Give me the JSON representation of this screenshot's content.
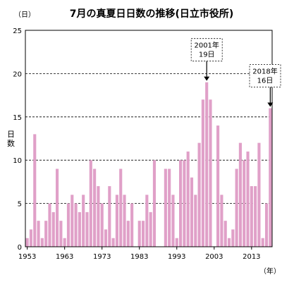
{
  "chart_data": {
    "type": "bar",
    "title": "7月の真夏日日数の推移(日立市役所)",
    "y_unit": "（日）",
    "ylabel": "日数",
    "x_unit": "（年）",
    "ylim": [
      0,
      25
    ],
    "y_ticks": [
      "0",
      "5",
      "10",
      "15",
      "20",
      "25"
    ],
    "x_ticks": [
      "1953",
      "1963",
      "1973",
      "1983",
      "1993",
      "2003",
      "2013"
    ],
    "grid": "horizontal-dashed",
    "bar_color": "#e0a0c8",
    "categories": [
      1953,
      1954,
      1955,
      1956,
      1957,
      1958,
      1959,
      1960,
      1961,
      1962,
      1963,
      1964,
      1965,
      1966,
      1967,
      1968,
      1969,
      1970,
      1971,
      1972,
      1973,
      1974,
      1975,
      1976,
      1977,
      1978,
      1979,
      1980,
      1981,
      1982,
      1983,
      1984,
      1985,
      1986,
      1987,
      1988,
      1989,
      1990,
      1991,
      1992,
      1993,
      1994,
      1995,
      1996,
      1997,
      1998,
      1999,
      2000,
      2001,
      2002,
      2003,
      2004,
      2005,
      2006,
      2007,
      2008,
      2009,
      2010,
      2011,
      2012,
      2013,
      2014,
      2015,
      2016,
      2017,
      2018
    ],
    "values": [
      1,
      2,
      13,
      3,
      1,
      3,
      5,
      4,
      9,
      3,
      1,
      5,
      6,
      5,
      4,
      6,
      4,
      10,
      9,
      7,
      5,
      2,
      7,
      1,
      6,
      9,
      6,
      3,
      5,
      0,
      3,
      3,
      6,
      4,
      10,
      0,
      0,
      9,
      9,
      6,
      1,
      10,
      10,
      11,
      8,
      6,
      12,
      17,
      19,
      17,
      0,
      14,
      6,
      3,
      1,
      2,
      9,
      12,
      10,
      11,
      7,
      7,
      12,
      1,
      5,
      16
    ],
    "annotations": [
      {
        "year": 2001,
        "year_label": "2001年",
        "value_label": "19日",
        "value": 19
      },
      {
        "year": 2018,
        "year_label": "2018年",
        "value_label": "16日",
        "value": 16
      }
    ]
  }
}
